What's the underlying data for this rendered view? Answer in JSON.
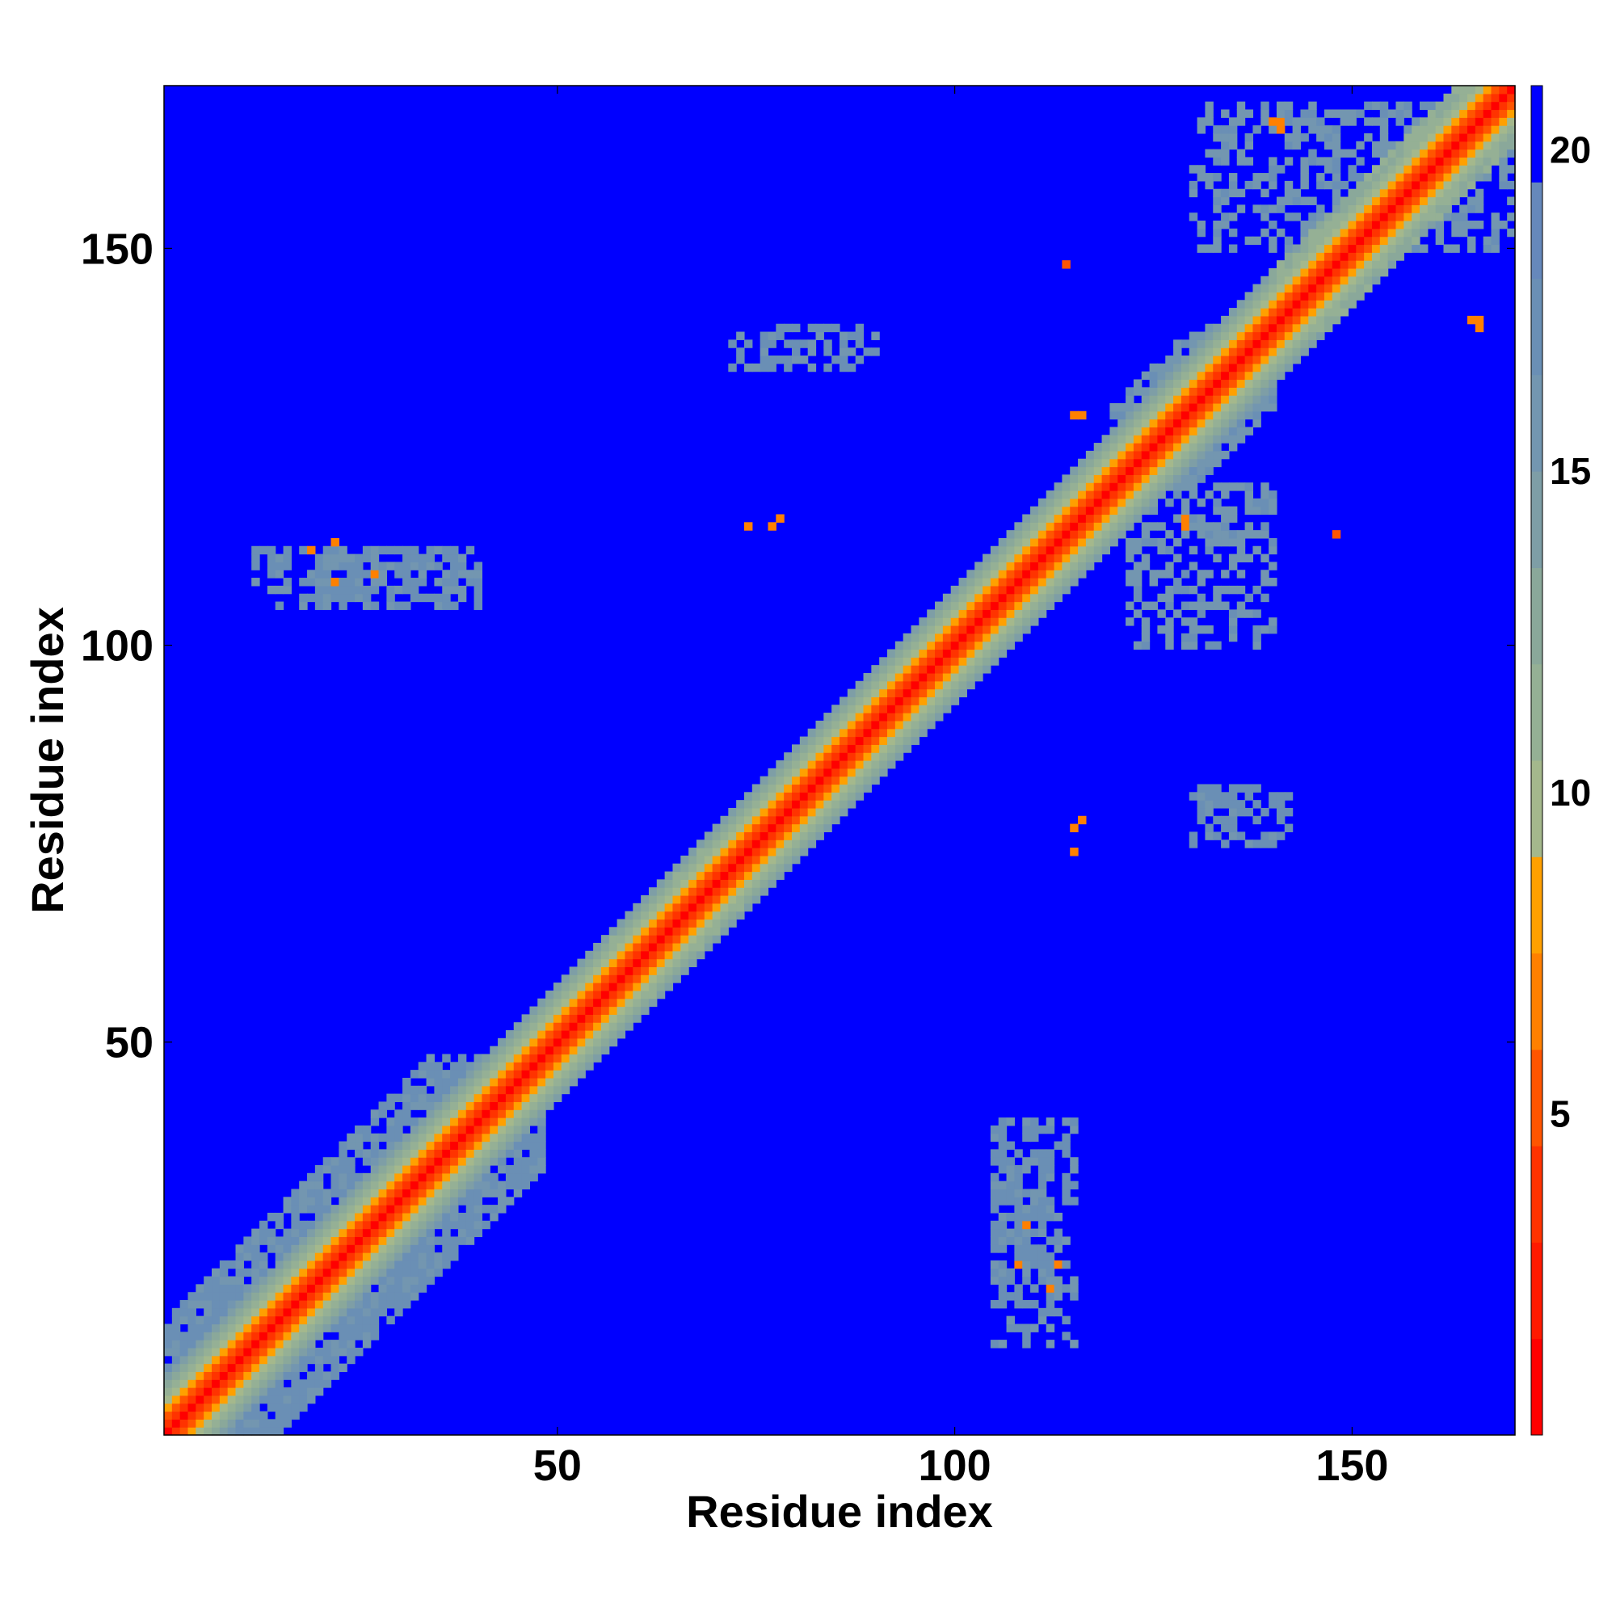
{
  "chart_data": {
    "type": "heatmap",
    "title": "",
    "xlabel": "Residue index",
    "ylabel": "Residue index",
    "n_residues": 170,
    "xlim": [
      0.5,
      170.5
    ],
    "ylim": [
      0.5,
      170.5
    ],
    "x_ticks": [
      50,
      100,
      150
    ],
    "y_ticks": [
      50,
      100,
      150
    ],
    "colorbar": {
      "range": [
        0,
        21
      ],
      "ticks": [
        5,
        10,
        15,
        20
      ],
      "levels": [
        {
          "from": 0,
          "to": 1.5,
          "color": "#ff0000"
        },
        {
          "from": 1.5,
          "to": 3,
          "color": "#ff1a00"
        },
        {
          "from": 3,
          "to": 4.5,
          "color": "#ff3300"
        },
        {
          "from": 4.5,
          "to": 6,
          "color": "#ff5500"
        },
        {
          "from": 6,
          "to": 7.5,
          "color": "#ff8000"
        },
        {
          "from": 7.5,
          "to": 9,
          "color": "#ffa000"
        },
        {
          "from": 9,
          "to": 10.5,
          "color": "#a4b88c"
        },
        {
          "from": 10.5,
          "to": 12,
          "color": "#95b095"
        },
        {
          "from": 12,
          "to": 13.5,
          "color": "#8aa89a"
        },
        {
          "from": 13.5,
          "to": 15,
          "color": "#7e9ea6"
        },
        {
          "from": 15,
          "to": 16.5,
          "color": "#7396b0"
        },
        {
          "from": 16.5,
          "to": 18,
          "color": "#6a8fb5"
        },
        {
          "from": 18,
          "to": 19.5,
          "color": "#6688bb"
        },
        {
          "from": 19.5,
          "to": 21,
          "color": "#0000ff"
        }
      ]
    },
    "background_value": 21,
    "diagonal_profile": [
      {
        "offset": 0,
        "value": 0.5
      },
      {
        "offset": 1,
        "value": 3.0
      },
      {
        "offset": 2,
        "value": 5.2
      },
      {
        "offset": 3,
        "value": 8.5
      },
      {
        "offset": 4,
        "value": 10.0
      },
      {
        "offset": 5,
        "value": 11.0
      },
      {
        "offset": 6,
        "value": 12.5
      },
      {
        "offset": 7,
        "value": 14.0
      }
    ],
    "contact_regions": [
      {
        "i": [
          1,
          48
        ],
        "j": [
          1,
          48
        ],
        "max_offset": 14,
        "value": 17
      },
      {
        "i": [
          55,
          75
        ],
        "j": [
          55,
          75
        ],
        "max_offset": 6,
        "value": 12
      },
      {
        "i": [
          120,
          140
        ],
        "j": [
          120,
          140
        ],
        "max_offset": 10,
        "value": 16
      },
      {
        "i": [
          140,
          170
        ],
        "j": [
          140,
          170
        ],
        "max_offset": 7,
        "value": 12
      },
      {
        "i": [
          12,
          40
        ],
        "j": [
          105,
          112
        ],
        "max_offset": 999,
        "value": 17
      },
      {
        "i": [
          105,
          115
        ],
        "j": [
          12,
          40
        ],
        "max_offset": 999,
        "value": 17
      },
      {
        "i": [
          105,
          112
        ],
        "j": [
          20,
          40
        ],
        "max_offset": 999,
        "value": 17
      },
      {
        "i": [
          20,
          40
        ],
        "j": [
          105,
          112
        ],
        "max_offset": 999,
        "value": 17
      },
      {
        "i": [
          130,
          142
        ],
        "j": [
          75,
          82
        ],
        "max_offset": 999,
        "value": 17
      },
      {
        "i": [
          72,
          90
        ],
        "j": [
          135,
          140
        ],
        "max_offset": 999,
        "value": 17
      },
      {
        "i": [
          130,
          170
        ],
        "j": [
          150,
          168
        ],
        "max_offset": 999,
        "value": 16
      },
      {
        "i": [
          122,
          140
        ],
        "j": [
          100,
          120
        ],
        "max_offset": 999,
        "value": 16
      }
    ],
    "hotspots": [
      {
        "i": 78,
        "j": 116,
        "value": 7
      },
      {
        "i": 115,
        "j": 77,
        "value": 7
      },
      {
        "i": 129,
        "j": 115,
        "value": 6
      },
      {
        "i": 129,
        "j": 116,
        "value": 6
      },
      {
        "i": 115,
        "j": 129,
        "value": 6
      },
      {
        "i": 141,
        "j": 165,
        "value": 6
      },
      {
        "i": 140,
        "j": 166,
        "value": 6
      },
      {
        "i": 166,
        "j": 141,
        "value": 6
      },
      {
        "i": 27,
        "j": 109,
        "value": 6
      },
      {
        "i": 109,
        "j": 27,
        "value": 6
      },
      {
        "i": 108,
        "j": 22,
        "value": 6
      },
      {
        "i": 112,
        "j": 19,
        "value": 6
      },
      {
        "i": 148,
        "j": 114,
        "value": 5
      },
      {
        "i": 114,
        "j": 148,
        "value": 5
      },
      {
        "i": 19,
        "j": 112,
        "value": 6
      },
      {
        "i": 74,
        "j": 115,
        "value": 7
      },
      {
        "i": 22,
        "j": 113,
        "value": 6
      }
    ]
  }
}
